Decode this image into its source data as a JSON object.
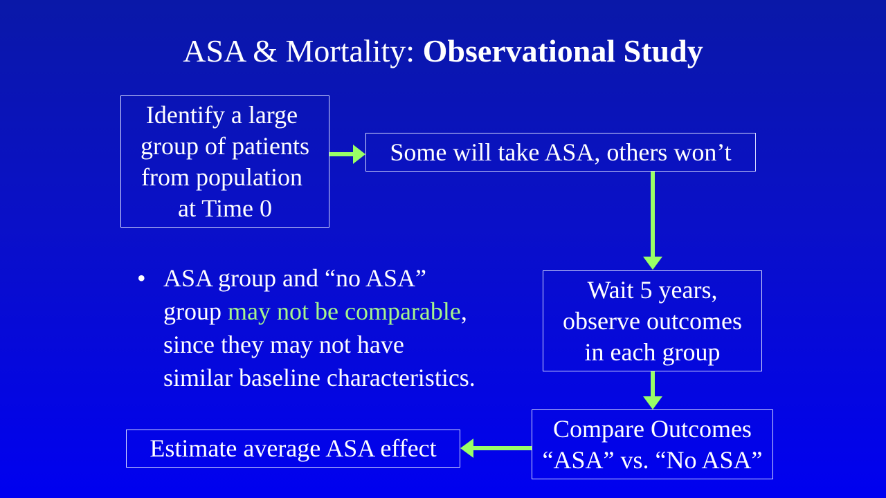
{
  "title": {
    "plain": "ASA & Mortality: ",
    "bold": "Observational Study"
  },
  "boxes": {
    "identify": "Identify a large \ngroup of patients\nfrom population \nat Time 0",
    "some_take": "Some will take ASA, others won’t",
    "wait": "Wait 5 years,\nobserve outcomes\nin each group",
    "compare": "Compare Outcomes\n“ASA” vs. “No ASA”",
    "estimate": "Estimate average ASA effect"
  },
  "bullet": {
    "symbol": "•",
    "line1": "ASA group and “no ASA”",
    "line2_prefix": "group ",
    "line2_highlight": "may not be comparable",
    "line2_suffix": ",",
    "line3": "since they may not have",
    "line4": "similar baseline characteristics."
  },
  "colors": {
    "background_top": "#0a18a8",
    "background_bottom": "#0000f0",
    "arrow": "#99ff66",
    "highlight_text": "#a6f58c",
    "box_border": "#d8dcff"
  }
}
